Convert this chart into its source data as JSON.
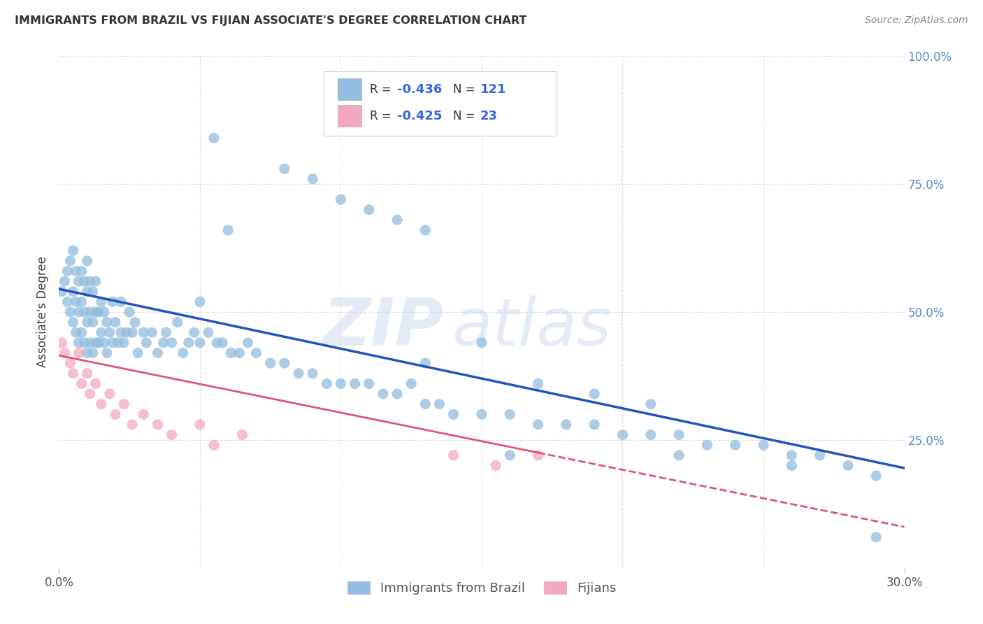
{
  "title": "IMMIGRANTS FROM BRAZIL VS FIJIAN ASSOCIATE'S DEGREE CORRELATION CHART",
  "source": "Source: ZipAtlas.com",
  "ylabel": "Associate's Degree",
  "right_yticks": [
    "100.0%",
    "75.0%",
    "50.0%",
    "25.0%"
  ],
  "right_ytick_vals": [
    1.0,
    0.75,
    0.5,
    0.25
  ],
  "brazil_R": "-0.436",
  "brazil_N": "121",
  "fijian_R": "-0.425",
  "fijian_N": "23",
  "brazil_scatter_x": [
    0.001,
    0.002,
    0.003,
    0.003,
    0.004,
    0.004,
    0.005,
    0.005,
    0.005,
    0.006,
    0.006,
    0.006,
    0.007,
    0.007,
    0.007,
    0.008,
    0.008,
    0.008,
    0.009,
    0.009,
    0.009,
    0.01,
    0.01,
    0.01,
    0.01,
    0.011,
    0.011,
    0.011,
    0.012,
    0.012,
    0.012,
    0.013,
    0.013,
    0.013,
    0.014,
    0.014,
    0.015,
    0.015,
    0.016,
    0.016,
    0.017,
    0.017,
    0.018,
    0.019,
    0.019,
    0.02,
    0.021,
    0.022,
    0.022,
    0.023,
    0.024,
    0.025,
    0.026,
    0.027,
    0.028,
    0.03,
    0.031,
    0.033,
    0.035,
    0.037,
    0.038,
    0.04,
    0.042,
    0.044,
    0.046,
    0.048,
    0.05,
    0.053,
    0.056,
    0.058,
    0.061,
    0.064,
    0.067,
    0.07,
    0.075,
    0.08,
    0.085,
    0.09,
    0.095,
    0.1,
    0.105,
    0.11,
    0.115,
    0.12,
    0.125,
    0.13,
    0.135,
    0.14,
    0.15,
    0.16,
    0.17,
    0.18,
    0.19,
    0.2,
    0.21,
    0.22,
    0.23,
    0.24,
    0.25,
    0.26,
    0.27,
    0.28,
    0.29,
    0.05,
    0.06,
    0.13,
    0.15,
    0.17,
    0.19,
    0.21,
    0.16,
    0.22,
    0.26,
    0.29,
    0.055,
    0.08,
    0.09,
    0.1,
    0.11,
    0.12,
    0.13
  ],
  "brazil_scatter_y": [
    0.54,
    0.56,
    0.52,
    0.58,
    0.5,
    0.6,
    0.48,
    0.54,
    0.62,
    0.46,
    0.52,
    0.58,
    0.44,
    0.5,
    0.56,
    0.46,
    0.52,
    0.58,
    0.44,
    0.5,
    0.56,
    0.42,
    0.48,
    0.54,
    0.6,
    0.44,
    0.5,
    0.56,
    0.42,
    0.48,
    0.54,
    0.44,
    0.5,
    0.56,
    0.44,
    0.5,
    0.46,
    0.52,
    0.44,
    0.5,
    0.42,
    0.48,
    0.46,
    0.52,
    0.44,
    0.48,
    0.44,
    0.46,
    0.52,
    0.44,
    0.46,
    0.5,
    0.46,
    0.48,
    0.42,
    0.46,
    0.44,
    0.46,
    0.42,
    0.44,
    0.46,
    0.44,
    0.48,
    0.42,
    0.44,
    0.46,
    0.44,
    0.46,
    0.44,
    0.44,
    0.42,
    0.42,
    0.44,
    0.42,
    0.4,
    0.4,
    0.38,
    0.38,
    0.36,
    0.36,
    0.36,
    0.36,
    0.34,
    0.34,
    0.36,
    0.32,
    0.32,
    0.3,
    0.3,
    0.3,
    0.28,
    0.28,
    0.28,
    0.26,
    0.26,
    0.26,
    0.24,
    0.24,
    0.24,
    0.22,
    0.22,
    0.2,
    0.18,
    0.52,
    0.66,
    0.4,
    0.44,
    0.36,
    0.34,
    0.32,
    0.22,
    0.22,
    0.2,
    0.06,
    0.84,
    0.78,
    0.76,
    0.72,
    0.7,
    0.68,
    0.66
  ],
  "fijian_scatter_x": [
    0.001,
    0.002,
    0.004,
    0.005,
    0.007,
    0.008,
    0.01,
    0.011,
    0.013,
    0.015,
    0.018,
    0.02,
    0.023,
    0.026,
    0.03,
    0.035,
    0.04,
    0.05,
    0.055,
    0.065,
    0.14,
    0.155,
    0.17
  ],
  "fijian_scatter_y": [
    0.44,
    0.42,
    0.4,
    0.38,
    0.42,
    0.36,
    0.38,
    0.34,
    0.36,
    0.32,
    0.34,
    0.3,
    0.32,
    0.28,
    0.3,
    0.28,
    0.26,
    0.28,
    0.24,
    0.26,
    0.22,
    0.2,
    0.22
  ],
  "brazil_line_x": [
    0.0,
    0.3
  ],
  "brazil_line_y": [
    0.545,
    0.195
  ],
  "fijian_line_x": [
    0.0,
    0.3
  ],
  "fijian_line_y": [
    0.415,
    0.08
  ],
  "brazil_scatter_color": "#92bde0",
  "fijian_scatter_color": "#f4a8be",
  "brazil_line_color": "#2255bb",
  "fijian_line_color": "#e05575",
  "watermark_zip": "ZIP",
  "watermark_atlas": "atlas",
  "xlim": [
    0.0,
    0.3
  ],
  "ylim": [
    0.0,
    1.0
  ],
  "background_color": "#ffffff",
  "grid_color": "#dddddd"
}
